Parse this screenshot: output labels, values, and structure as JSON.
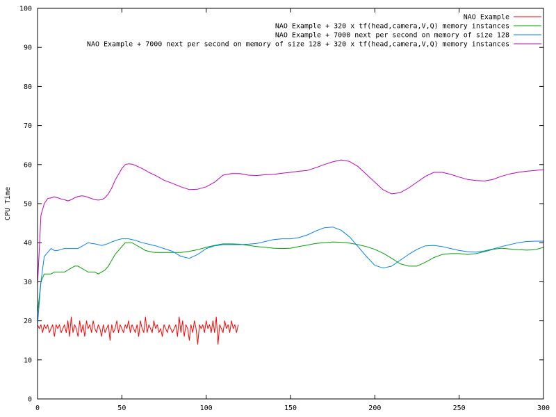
{
  "chart_data": {
    "type": "line",
    "title": "",
    "xlabel": "",
    "ylabel": "CPU Time",
    "xlim": [
      0,
      300
    ],
    "ylim": [
      0,
      100
    ],
    "x_ticks": [
      0,
      50,
      100,
      150,
      200,
      250,
      300
    ],
    "y_ticks": [
      0,
      10,
      20,
      30,
      40,
      50,
      60,
      70,
      80,
      90,
      100
    ],
    "grid": false,
    "legend_position": "top-right",
    "series": [
      {
        "name": "NAO Example",
        "color": "#ff0000",
        "x": [
          0,
          1,
          2,
          3,
          4,
          5,
          6,
          7,
          8,
          9,
          10,
          11,
          12,
          13,
          14,
          15,
          16,
          17,
          18,
          19,
          20,
          21,
          22,
          23,
          24,
          25,
          26,
          27,
          28,
          29,
          30,
          31,
          32,
          33,
          34,
          35,
          36,
          37,
          38,
          39,
          40,
          41,
          42,
          43,
          44,
          45,
          46,
          47,
          48,
          49,
          50,
          51,
          52,
          53,
          54,
          55,
          56,
          57,
          58,
          59,
          60,
          61,
          62,
          63,
          64,
          65,
          66,
          67,
          68,
          69,
          70,
          71,
          72,
          73,
          74,
          75,
          76,
          77,
          78,
          79,
          80,
          81,
          82,
          83,
          84,
          85,
          86,
          87,
          88,
          89,
          90,
          91,
          92,
          93,
          94,
          95,
          96,
          97,
          98,
          99,
          100,
          101,
          102,
          103,
          104,
          105,
          106,
          107,
          108,
          109,
          110,
          111,
          112,
          113,
          114,
          115,
          116,
          117,
          118,
          119
        ],
        "y": [
          19,
          18,
          19,
          17,
          19,
          18,
          19,
          17,
          18,
          19,
          16,
          19,
          18,
          19,
          17,
          18,
          19,
          17,
          20,
          16,
          21,
          17,
          19,
          18,
          16,
          20,
          17,
          19,
          16,
          20,
          18,
          19,
          17,
          20,
          18,
          17,
          19,
          18,
          16,
          19,
          17,
          18,
          19,
          15,
          19,
          17,
          18,
          20,
          17,
          19,
          18,
          17,
          19,
          18,
          20,
          17,
          19,
          18,
          17,
          19,
          16,
          20,
          18,
          17,
          21,
          17,
          19,
          18,
          17,
          20,
          18,
          19,
          17,
          18,
          16,
          19,
          18,
          17,
          19,
          18,
          17,
          18,
          19,
          16,
          21,
          17,
          20,
          16,
          19,
          18,
          15,
          19,
          17,
          20,
          18,
          14,
          19,
          18,
          19,
          17,
          20,
          18,
          19,
          17,
          20,
          17,
          21,
          14,
          19,
          18,
          17,
          20,
          18,
          19,
          17,
          20,
          18,
          19,
          17,
          19
        ]
      },
      {
        "name": "NAO Example + 320 x tf(head,camera,V,Q) memory instances",
        "color": "#00a000",
        "x": [
          0,
          2,
          4,
          6,
          8,
          10,
          12,
          14,
          16,
          18,
          20,
          22,
          24,
          26,
          28,
          30,
          32,
          34,
          36,
          38,
          40,
          42,
          44,
          46,
          48,
          50,
          52,
          54,
          56,
          58,
          60,
          62,
          64,
          66,
          68,
          70,
          72,
          74,
          76,
          78,
          80,
          85,
          90,
          95,
          100,
          105,
          110,
          115,
          120,
          125,
          130,
          135,
          140,
          145,
          150,
          155,
          160,
          165,
          170,
          175,
          180,
          185,
          190,
          195,
          200,
          205,
          210,
          215,
          220,
          225,
          230,
          235,
          240,
          245,
          250,
          255,
          260,
          265,
          270,
          275,
          280,
          285,
          290,
          295,
          300
        ],
        "y": [
          22,
          30,
          32,
          32,
          32,
          32.5,
          32.5,
          32.5,
          32.5,
          33,
          33.5,
          34,
          34,
          33.5,
          33,
          32.5,
          32.5,
          32.5,
          32,
          32.5,
          33,
          34,
          35.5,
          37,
          38,
          39,
          40,
          40,
          40,
          39.5,
          39,
          38.5,
          38,
          37.8,
          37.6,
          37.5,
          37.5,
          37.5,
          37.5,
          37.5,
          37.5,
          37.5,
          37.8,
          38.2,
          38.8,
          39.3,
          39.7,
          39.7,
          39.6,
          39.3,
          39,
          38.8,
          38.6,
          38.5,
          38.6,
          39,
          39.4,
          39.8,
          40,
          40.2,
          40.1,
          39.9,
          39.5,
          39,
          38.3,
          37.3,
          36,
          34.6,
          34,
          34,
          35,
          36.2,
          37,
          37.2,
          37.2,
          37,
          37.2,
          37.7,
          38.3,
          38.6,
          38.4,
          38.2,
          38.1,
          38.2,
          38.8
        ]
      },
      {
        "name": "NAO Example + 7000  next per second on memory of size 128",
        "color": "#0080ff",
        "x": [
          0,
          2,
          4,
          6,
          8,
          10,
          12,
          14,
          16,
          18,
          20,
          22,
          24,
          26,
          28,
          30,
          32,
          34,
          36,
          38,
          40,
          42,
          44,
          46,
          48,
          50,
          52,
          54,
          56,
          58,
          60,
          62,
          64,
          66,
          68,
          70,
          75,
          80,
          85,
          90,
          95,
          100,
          105,
          110,
          115,
          120,
          125,
          130,
          135,
          140,
          145,
          150,
          155,
          160,
          165,
          170,
          175,
          180,
          185,
          190,
          195,
          200,
          205,
          210,
          215,
          220,
          225,
          230,
          235,
          240,
          245,
          250,
          255,
          260,
          265,
          270,
          275,
          280,
          285,
          290,
          295,
          300
        ],
        "y": [
          19,
          30,
          36.5,
          37.5,
          38.5,
          38,
          38,
          38.3,
          38.5,
          38.5,
          38.5,
          38.5,
          38.5,
          39,
          39.5,
          40,
          39.8,
          39.7,
          39.5,
          39.3,
          39.5,
          39.8,
          40.2,
          40.5,
          40.8,
          41,
          41,
          41,
          40.8,
          40.6,
          40.3,
          40,
          39.8,
          39.6,
          39.4,
          39.2,
          38.5,
          37.8,
          36.5,
          36,
          37,
          38.5,
          39.2,
          39.5,
          39.5,
          39.5,
          39.6,
          39.8,
          40.3,
          40.8,
          41,
          41,
          41.3,
          42,
          43,
          43.8,
          44,
          43.2,
          41.5,
          39,
          36.5,
          34.2,
          33.5,
          34,
          35.5,
          37,
          38.3,
          39.2,
          39.3,
          39,
          38.5,
          38,
          37.7,
          37.6,
          37.9,
          38.4,
          39,
          39.5,
          40,
          40.3,
          40.4,
          40.4
        ]
      },
      {
        "name": "NAO Example + 7000  next per second on memory of size 128 + 320 x tf(head,camera,V,Q) memory instances",
        "color": "#c000c0",
        "x": [
          0,
          2,
          4,
          6,
          8,
          10,
          12,
          14,
          16,
          18,
          20,
          22,
          24,
          26,
          28,
          30,
          32,
          34,
          36,
          38,
          40,
          42,
          44,
          46,
          48,
          50,
          52,
          54,
          56,
          58,
          60,
          62,
          64,
          66,
          68,
          70,
          75,
          80,
          85,
          90,
          95,
          100,
          105,
          110,
          115,
          120,
          125,
          130,
          135,
          140,
          145,
          150,
          155,
          160,
          165,
          170,
          175,
          180,
          185,
          190,
          195,
          200,
          205,
          210,
          215,
          220,
          225,
          230,
          235,
          240,
          245,
          250,
          255,
          260,
          265,
          270,
          275,
          280,
          285,
          290,
          295,
          300
        ],
        "y": [
          29,
          47,
          50,
          51.3,
          51.5,
          51.7,
          51.5,
          51.2,
          51,
          50.7,
          51,
          51.5,
          51.8,
          52,
          51.9,
          51.6,
          51.3,
          51,
          50.9,
          51,
          51.5,
          52.5,
          54,
          56,
          57.5,
          59,
          60,
          60.2,
          60.1,
          59.8,
          59.4,
          59,
          58.5,
          58,
          57.6,
          57.2,
          56,
          55.2,
          54.3,
          53.6,
          53.7,
          54.3,
          55.5,
          57.3,
          57.7,
          57.7,
          57.3,
          57.2,
          57.4,
          57.5,
          57.8,
          58,
          58.3,
          58.5,
          59.2,
          60,
          60.7,
          61.2,
          60.8,
          59.5,
          57.5,
          55.5,
          53.5,
          52.5,
          52.8,
          54,
          55.5,
          57,
          58,
          58,
          57.5,
          56.8,
          56.2,
          55.9,
          55.8,
          56.2,
          57,
          57.6,
          58,
          58.3,
          58.5,
          58.7
        ]
      }
    ]
  }
}
